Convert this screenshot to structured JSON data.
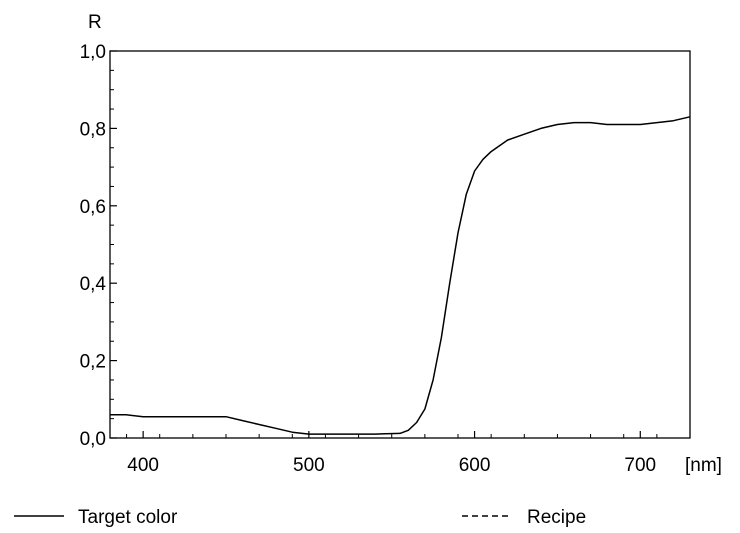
{
  "chart_data": {
    "type": "line",
    "ylabel": "R",
    "x_unit": "[nm]",
    "xlim": [
      380,
      730
    ],
    "ylim": [
      0.0,
      1.0
    ],
    "x_ticks": [
      400,
      500,
      600,
      700
    ],
    "x_tick_labels": [
      "400",
      "500",
      "600",
      "700"
    ],
    "y_ticks": [
      0.0,
      0.2,
      0.4,
      0.6,
      0.8,
      1.0
    ],
    "y_tick_labels": [
      "0,0",
      "0,2",
      "0,4",
      "0,6",
      "0,8",
      "1,0"
    ],
    "grid": false,
    "legend_position": "bottom",
    "series": [
      {
        "name": "Target color",
        "style": "solid",
        "x": [
          380,
          390,
          400,
          420,
          440,
          450,
          460,
          470,
          480,
          490,
          500,
          520,
          540,
          555,
          560,
          565,
          570,
          575,
          580,
          585,
          590,
          595,
          600,
          605,
          610,
          620,
          630,
          640,
          650,
          660,
          670,
          680,
          690,
          700,
          710,
          720,
          730
        ],
        "y": [
          0.06,
          0.06,
          0.055,
          0.055,
          0.055,
          0.055,
          0.045,
          0.035,
          0.025,
          0.015,
          0.01,
          0.01,
          0.01,
          0.012,
          0.02,
          0.04,
          0.075,
          0.15,
          0.26,
          0.4,
          0.53,
          0.63,
          0.69,
          0.72,
          0.74,
          0.77,
          0.785,
          0.8,
          0.81,
          0.815,
          0.815,
          0.81,
          0.81,
          0.81,
          0.815,
          0.82,
          0.83
        ]
      },
      {
        "name": "Recipe",
        "style": "dashed",
        "x": [],
        "y": []
      }
    ]
  },
  "legend": {
    "target_label": "Target color",
    "recipe_label": "Recipe"
  }
}
